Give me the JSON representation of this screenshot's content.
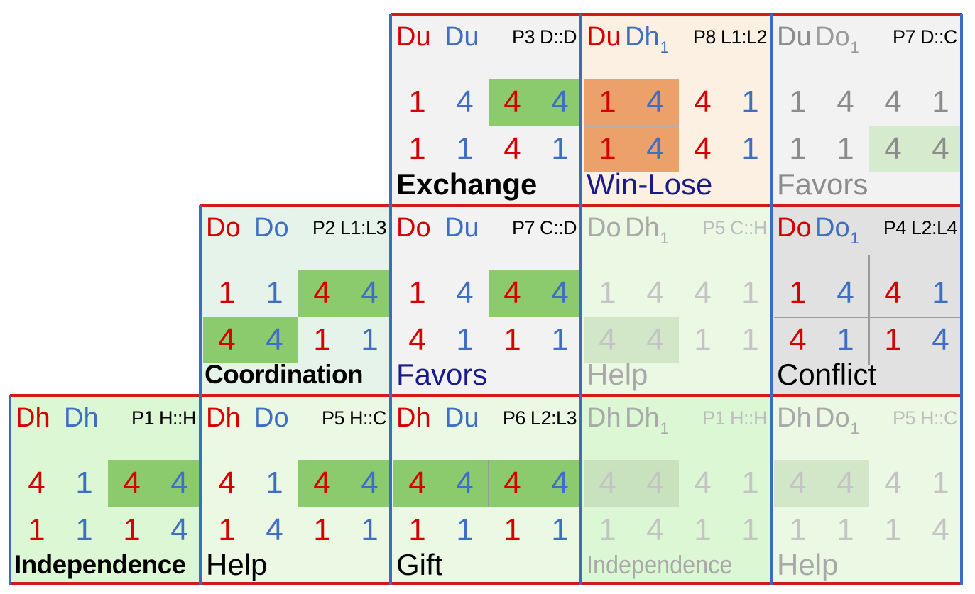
{
  "colors": {
    "red": "#d50000",
    "blue": "#3f6fc3",
    "green_strong": "#8cca6e",
    "orange": "#eca06a",
    "row_border": "#d31a1a",
    "col_border": "#3a6cc0"
  },
  "rows": [
    {
      "cells": [
        {
          "col": 2,
          "p1": "Du",
          "p2": "Du",
          "p2_sub": "",
          "pcode": "P3 D::D",
          "vals": [
            [
              "1",
              "4",
              "4",
              "4"
            ],
            [
              "1",
              "1",
              "4",
              "1"
            ]
          ],
          "label": "Exchange",
          "style": "normal",
          "bg": "#f2f2f2",
          "label_color": "#000000",
          "label_bold": true,
          "highlights": [
            {
              "row": 0,
              "from": 2,
              "to": 4,
              "color": "#8cca6e"
            }
          ],
          "dividers": []
        },
        {
          "col": 3,
          "p1": "Du",
          "p2": "Dh",
          "p2_sub": "1",
          "pcode": "P8 L1:L2",
          "vals": [
            [
              "1",
              "4",
              "4",
              "1"
            ],
            [
              "1",
              "4",
              "4",
              "1"
            ]
          ],
          "label": "Win-Lose",
          "style": "normal",
          "bg": "#fcf0e3",
          "label_color": "#1a1a8c",
          "label_bold": false,
          "highlights": [
            {
              "row": 0,
              "from": 0,
              "to": 2,
              "color": "#eca06a"
            },
            {
              "row": 1,
              "from": 0,
              "to": 2,
              "color": "#eca06a"
            }
          ],
          "dividers": [
            "h-left"
          ]
        },
        {
          "col": 4,
          "p1": "Du",
          "p2": "Do",
          "p2_sub": "1",
          "pcode": "P7 D::C",
          "vals": [
            [
              "1",
              "4",
              "4",
              "1"
            ],
            [
              "1",
              "1",
              "4",
              "4"
            ]
          ],
          "label": "Favors",
          "style": "gray",
          "bg": "#f2f2f2",
          "label_color": "#8c8c8c",
          "label_bold": false,
          "highlights": [
            {
              "row": 1,
              "from": 2,
              "to": 4,
              "color": "#d6ebce"
            }
          ],
          "dividers": []
        }
      ]
    },
    {
      "cells": [
        {
          "col": 1,
          "p1": "Do",
          "p2": "Do",
          "p2_sub": "",
          "pcode": "P2 L1:L3",
          "vals": [
            [
              "1",
              "1",
              "4",
              "4"
            ],
            [
              "4",
              "4",
              "1",
              "1"
            ]
          ],
          "label": "Coordination",
          "style": "normal",
          "bg": "#e5f3ea",
          "label_color": "#000000",
          "label_bold": true,
          "highlights": [
            {
              "row": 0,
              "from": 2,
              "to": 4,
              "color": "#8cca6e"
            },
            {
              "row": 1,
              "from": 0,
              "to": 2,
              "color": "#8cca6e"
            }
          ],
          "dividers": []
        },
        {
          "col": 2,
          "p1": "Do",
          "p2": "Du",
          "p2_sub": "",
          "pcode": "P7 C::D",
          "vals": [
            [
              "1",
              "4",
              "4",
              "4"
            ],
            [
              "4",
              "1",
              "1",
              "1"
            ]
          ],
          "label": "Favors",
          "style": "normal",
          "bg": "#f2f2f2",
          "label_color": "#1a1a8c",
          "label_bold": false,
          "highlights": [
            {
              "row": 0,
              "from": 2,
              "to": 4,
              "color": "#8cca6e"
            }
          ],
          "dividers": []
        },
        {
          "col": 3,
          "p1": "Do",
          "p2": "Dh",
          "p2_sub": "1",
          "pcode": "P5 C::H",
          "vals": [
            [
              "1",
              "4",
              "4",
              "1"
            ],
            [
              "4",
              "4",
              "1",
              "1"
            ]
          ],
          "label": "Help",
          "style": "faint",
          "bg": "#eaf8e4",
          "label_color": "#a9a9a9",
          "label_bold": false,
          "highlights": [
            {
              "row": 1,
              "from": 0,
              "to": 2,
              "color": "#d2e7c8"
            }
          ],
          "dividers": []
        },
        {
          "col": 4,
          "p1": "Do",
          "p2": "Do",
          "p2_sub": "1",
          "pcode": "P4 L2:L4",
          "vals": [
            [
              "1",
              "4",
              "4",
              "1"
            ],
            [
              "4",
              "1",
              "1",
              "4"
            ]
          ],
          "label": "Conflict",
          "style": "normal",
          "bg": "#e1e1e1",
          "label_color": "#000000",
          "label_bold": false,
          "highlights": [],
          "dividers": [
            "cross"
          ]
        }
      ]
    },
    {
      "cells": [
        {
          "col": 0,
          "p1": "Dh",
          "p2": "Dh",
          "p2_sub": "",
          "pcode": "P1 H::H",
          "vals": [
            [
              "4",
              "1",
              "4",
              "4"
            ],
            [
              "1",
              "1",
              "1",
              "4"
            ]
          ],
          "label": "Independence",
          "style": "normal",
          "bg": "#dcf7d4",
          "label_color": "#000000",
          "label_bold": true,
          "highlights": [
            {
              "row": 0,
              "from": 2,
              "to": 4,
              "color": "#8cca6e"
            }
          ],
          "dividers": []
        },
        {
          "col": 1,
          "p1": "Dh",
          "p2": "Do",
          "p2_sub": "",
          "pcode": "P5 H::C",
          "vals": [
            [
              "4",
              "1",
              "4",
              "4"
            ],
            [
              "1",
              "4",
              "1",
              "1"
            ]
          ],
          "label": "Help",
          "style": "normal",
          "bg": "#eaf8e4",
          "label_color": "#000000",
          "label_bold": false,
          "highlights": [
            {
              "row": 0,
              "from": 2,
              "to": 4,
              "color": "#8cca6e"
            }
          ],
          "dividers": []
        },
        {
          "col": 2,
          "p1": "Dh",
          "p2": "Du",
          "p2_sub": "",
          "pcode": "P6 L2:L3",
          "vals": [
            [
              "4",
              "4",
              "4",
              "4"
            ],
            [
              "1",
              "1",
              "1",
              "1"
            ]
          ],
          "label": "Gift",
          "style": "normal",
          "bg": "#eaf8e4",
          "label_color": "#000000",
          "label_bold": false,
          "highlights": [
            {
              "row": 0,
              "from": 0,
              "to": 4,
              "color": "#8cca6e"
            }
          ],
          "dividers": [
            "v-top"
          ]
        },
        {
          "col": 3,
          "p1": "Dh",
          "p2": "Dh",
          "p2_sub": "1",
          "pcode": "P1 H::H",
          "vals": [
            [
              "4",
              "4",
              "4",
              "1"
            ],
            [
              "1",
              "4",
              "1",
              "1"
            ]
          ],
          "label": "Independence",
          "style": "faint",
          "bg": "#dcf7d4",
          "label_color": "#a9a9a9",
          "label_bold": false,
          "highlights": [
            {
              "row": 0,
              "from": 0,
              "to": 2,
              "color": "#c7e2bc"
            }
          ],
          "dividers": []
        },
        {
          "col": 4,
          "p1": "Dh",
          "p2": "Do",
          "p2_sub": "1",
          "pcode": "P5 H::C",
          "vals": [
            [
              "4",
              "4",
              "4",
              "1"
            ],
            [
              "1",
              "1",
              "1",
              "4"
            ]
          ],
          "label": "Help",
          "style": "faint",
          "bg": "#eaf8e4",
          "label_color": "#a9a9a9",
          "label_bold": false,
          "highlights": [
            {
              "row": 0,
              "from": 0,
              "to": 2,
              "color": "#d2e7c8"
            }
          ],
          "dividers": []
        }
      ]
    }
  ]
}
